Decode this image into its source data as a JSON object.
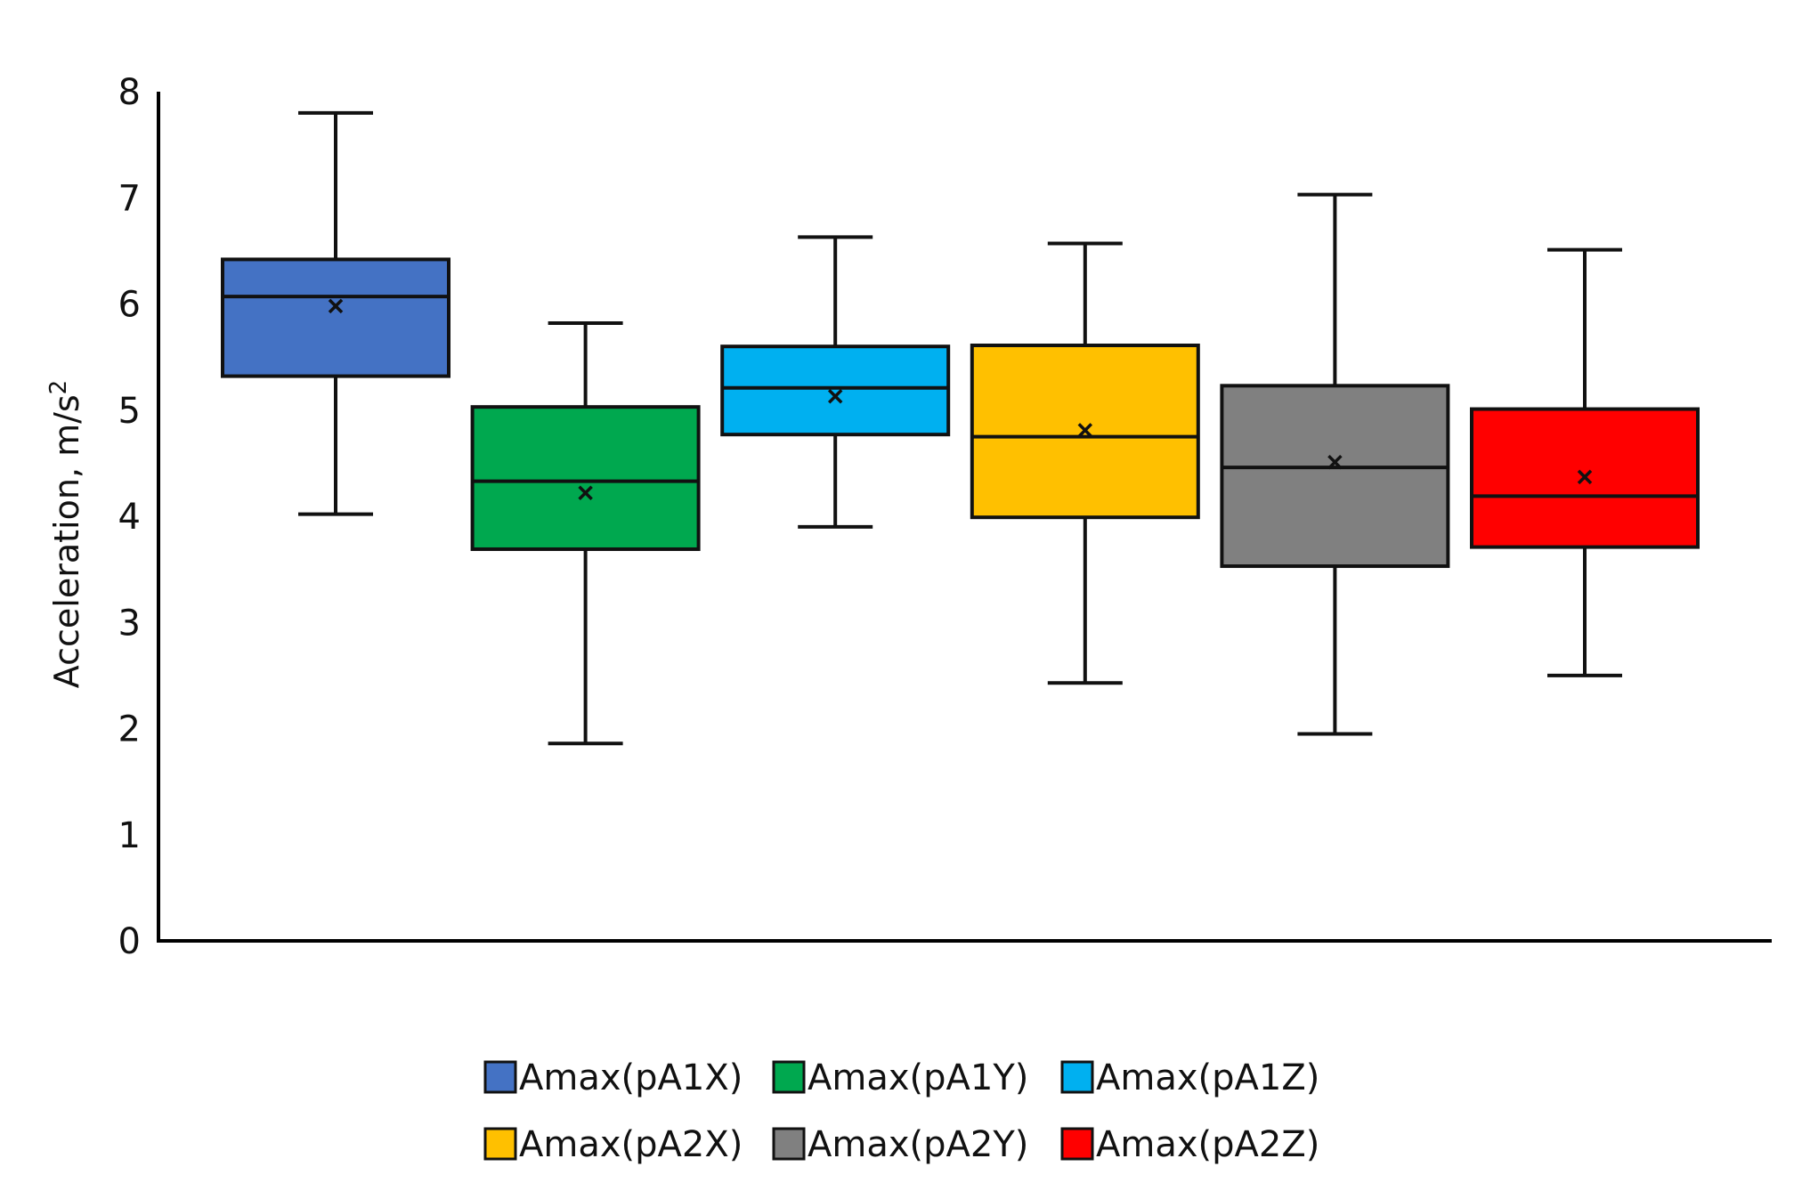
{
  "chart_data": {
    "type": "boxplot",
    "title": "",
    "xlabel": "",
    "ylabel": "Acceleration, m/s",
    "ylabel_superscript": "2",
    "ylim": [
      0,
      8
    ],
    "yticks": [
      0,
      1,
      2,
      3,
      4,
      5,
      6,
      7,
      8
    ],
    "grid": false,
    "legend_position": "bottom",
    "series": [
      {
        "name": "Amax(pA1X)",
        "color": "#4472C4",
        "min": 4.02,
        "q1": 5.32,
        "median": 6.07,
        "q3": 6.42,
        "max": 7.8,
        "mean": 5.98
      },
      {
        "name": "Amax(pA1Y)",
        "color": "#00A84F",
        "min": 1.86,
        "q1": 3.69,
        "median": 4.33,
        "q3": 5.03,
        "max": 5.82,
        "mean": 4.22
      },
      {
        "name": "Amax(pA1Z)",
        "color": "#00B0F0",
        "min": 3.9,
        "q1": 4.77,
        "median": 5.21,
        "q3": 5.6,
        "max": 6.63,
        "mean": 5.13
      },
      {
        "name": "Amax(pA2X)",
        "color": "#FFC000",
        "min": 2.43,
        "q1": 3.99,
        "median": 4.75,
        "q3": 5.61,
        "max": 6.57,
        "mean": 4.81
      },
      {
        "name": "Amax(pA2Y)",
        "color": "#808080",
        "min": 1.95,
        "q1": 3.53,
        "median": 4.46,
        "q3": 5.23,
        "max": 7.03,
        "mean": 4.51
      },
      {
        "name": "Amax(pA2Z)",
        "color": "#FF0000",
        "min": 2.5,
        "q1": 3.71,
        "median": 4.19,
        "q3": 5.01,
        "max": 6.51,
        "mean": 4.37
      }
    ]
  }
}
